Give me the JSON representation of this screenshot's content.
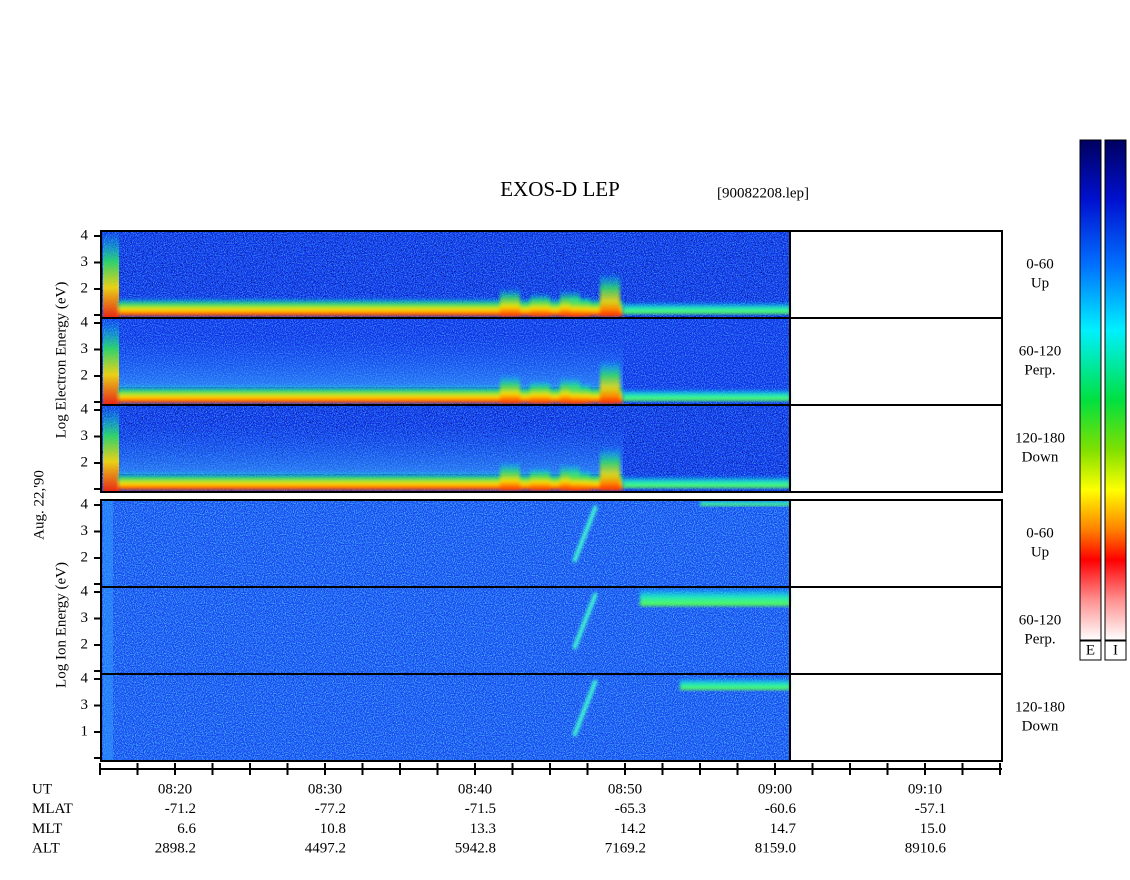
{
  "header": {
    "title": "EXOS-D LEP",
    "file": "[90082208.lep]"
  },
  "left_labels": {
    "electron": "Log  Electron  Energy (eV)",
    "date": "Aug. 22,'90",
    "ion": "Log  Ion  Energy (eV)"
  },
  "panels": [
    {
      "yticks": [
        4,
        3,
        2
      ],
      "angle": "0-60",
      "direction": "Up"
    },
    {
      "yticks": [
        4,
        3,
        2
      ],
      "angle": "60-120",
      "direction": "Perp."
    },
    {
      "yticks": [
        4,
        3,
        2
      ],
      "angle": "120-180",
      "direction": "Down"
    },
    {
      "yticks": [
        4,
        3,
        2
      ],
      "angle": "0-60",
      "direction": "Up"
    },
    {
      "yticks": [
        4,
        3,
        2
      ],
      "angle": "60-120",
      "direction": "Perp."
    },
    {
      "yticks": [
        4,
        3,
        1
      ],
      "angle": "120-180",
      "direction": "Down"
    }
  ],
  "time_axis": {
    "rows": [
      {
        "label": "UT",
        "values": [
          "08:20",
          "08:30",
          "08:40",
          "08:50",
          "09:00",
          "09:10"
        ]
      },
      {
        "label": "MLAT",
        "values": [
          "-71.2",
          "-77.2",
          "-71.5",
          "-65.3",
          "-60.6",
          "-57.1"
        ]
      },
      {
        "label": "MLT",
        "values": [
          "6.6",
          "10.8",
          "13.3",
          "14.2",
          "14.7",
          "15.0"
        ]
      },
      {
        "label": "ALT",
        "values": [
          "2898.2",
          "4497.2",
          "5942.8",
          "7169.2",
          "8159.0",
          "8910.6"
        ]
      }
    ]
  },
  "colorbar": {
    "labels": [
      "E",
      "I"
    ]
  }
}
